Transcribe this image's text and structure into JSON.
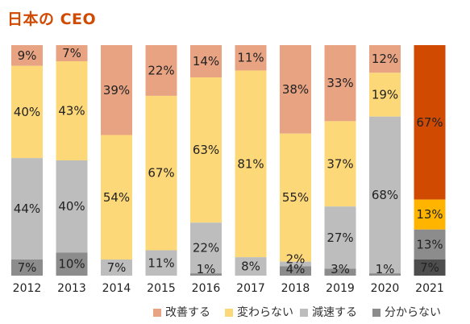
{
  "title": "日本の CEO",
  "chart_data": {
    "type": "bar",
    "stacked": true,
    "normalized": true,
    "title": "日本の CEO",
    "categories": [
      "2012",
      "2013",
      "2014",
      "2015",
      "2016",
      "2017",
      "2018",
      "2019",
      "2020",
      "2021"
    ],
    "series": [
      {
        "name": "改善する",
        "values": [
          9,
          7,
          39,
          22,
          14,
          11,
          38,
          33,
          12,
          67
        ]
      },
      {
        "name": "変わらない",
        "values": [
          40,
          43,
          54,
          67,
          63,
          81,
          55,
          37,
          19,
          13
        ]
      },
      {
        "name": "減速する",
        "values": [
          44,
          40,
          7,
          11,
          22,
          8,
          2,
          27,
          68,
          13
        ]
      },
      {
        "name": "分からない",
        "values": [
          7,
          10,
          0,
          0,
          1,
          0,
          4,
          3,
          1,
          7
        ]
      }
    ],
    "segment_labels": [
      [
        "9%",
        "40%",
        "44%",
        "7%"
      ],
      [
        "7%",
        "43%",
        "40%",
        "10%"
      ],
      [
        "39%",
        "54%",
        "7%",
        ""
      ],
      [
        "22%",
        "67%",
        "11%",
        ""
      ],
      [
        "14%",
        "63%",
        "22%",
        "1%"
      ],
      [
        "11%",
        "81%",
        "8%",
        ""
      ],
      [
        "38%",
        "55%",
        "2%",
        "4%"
      ],
      [
        "33%",
        "37%",
        "27%",
        "3%"
      ],
      [
        "12%",
        "19%",
        "68%",
        "1%"
      ],
      [
        "67%",
        "13%",
        "13%",
        "7%"
      ]
    ],
    "ylim": [
      0,
      100
    ],
    "legend_position": "bottom-right",
    "colors": {
      "series": [
        "#e8a383",
        "#fdd878",
        "#bdbdbd",
        "#8c8c8c"
      ],
      "highlight_series": [
        "#d04a02",
        "#ffb500",
        "#8c8c8c",
        "#4d4d4d"
      ],
      "highlight_category": "2021",
      "label_text": "#222222",
      "highlight_label_text": "#ffffff"
    }
  }
}
